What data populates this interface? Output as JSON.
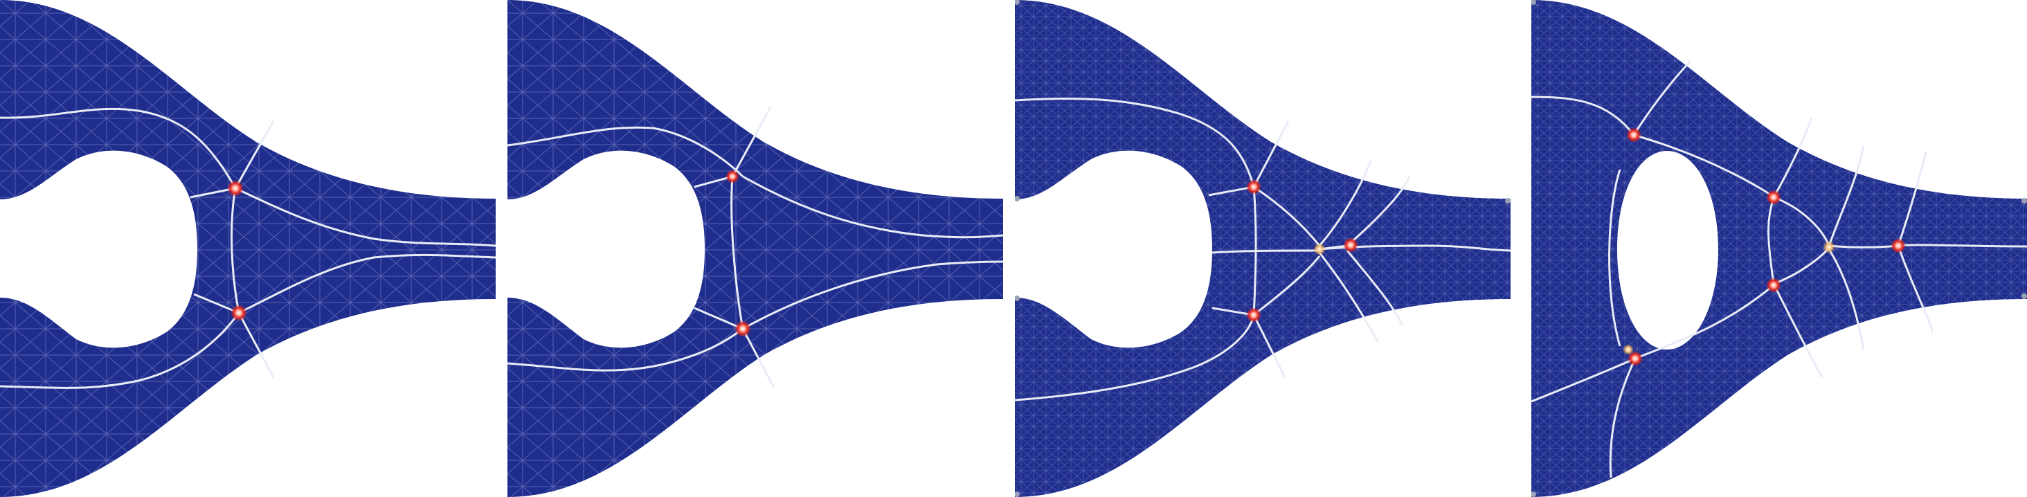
{
  "colors": {
    "domain_fill": "#1f2d8c",
    "mesh_line": "#5a68b8",
    "crack_line": "#e8ecf6",
    "hotspot_red": "#e0261e",
    "hotspot_orange": "#f2a23a",
    "corner_node": "#9aa0b8"
  },
  "panels": [
    {
      "id": "panel-1",
      "description_icon": "finite-element-mesh-coarse-two-lobed-hole"
    },
    {
      "id": "panel-2",
      "description_icon": "finite-element-mesh-coarse-two-lobed-hole"
    },
    {
      "id": "panel-3",
      "description_icon": "finite-element-mesh-fine-two-lobed-hole"
    },
    {
      "id": "panel-4",
      "description_icon": "finite-element-mesh-fine-elliptic-hole"
    }
  ]
}
